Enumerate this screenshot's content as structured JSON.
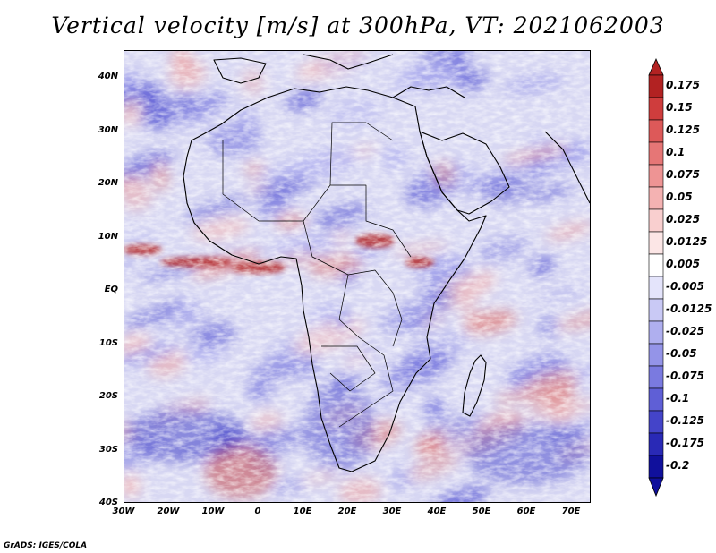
{
  "title": "Vertical velocity [m/s] at 300hPa, VT: 2021062003",
  "footer": "GrADS: IGES/COLA",
  "axes": {
    "lat_labels": [
      "40N",
      "30N",
      "20N",
      "10N",
      "EQ",
      "10S",
      "20S",
      "30S",
      "40S"
    ],
    "lon_labels": [
      "30W",
      "20W",
      "10W",
      "0",
      "10E",
      "20E",
      "30E",
      "40E",
      "50E",
      "60E",
      "70E"
    ]
  },
  "colorbar": {
    "labels": [
      "0.175",
      "0.15",
      "0.125",
      "0.1",
      "0.075",
      "0.05",
      "0.025",
      "0.0125",
      "0.005",
      "-0.005",
      "-0.0125",
      "-0.025",
      "-0.05",
      "-0.075",
      "-0.1",
      "-0.125",
      "-0.175",
      "-0.2"
    ],
    "colors": [
      "#b22222",
      "#cf3d3d",
      "#dd5959",
      "#e67676",
      "#ee9494",
      "#f4b2b2",
      "#f9cfcf",
      "#fce6e6",
      "#ffffff",
      "#e4e4fb",
      "#c9c9f5",
      "#afafef",
      "#9494e8",
      "#7a7ae0",
      "#5f5fd6",
      "#4444c9",
      "#2929b6",
      "#10109c"
    ]
  },
  "colors": {
    "positive": "#d94848",
    "negative": "#6b6bd9",
    "background": "#e4e4f7"
  }
}
